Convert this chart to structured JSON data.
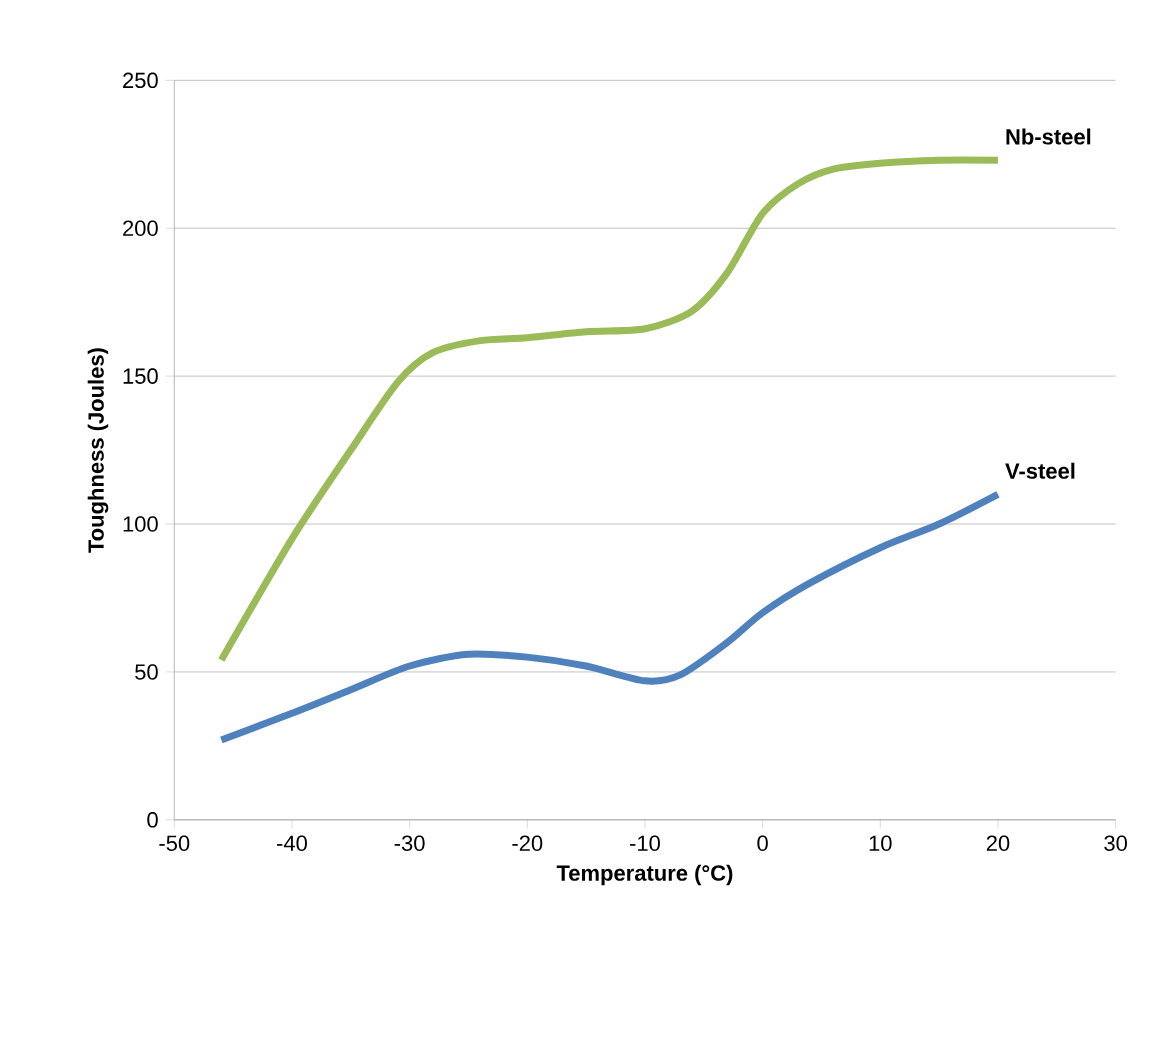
{
  "chart_data": {
    "type": "line",
    "xlabel": "Temperature (°C)",
    "ylabel": "Toughness  (Joules)",
    "xlim": [
      -50,
      30
    ],
    "xticks": [
      -50,
      -40,
      -30,
      -20,
      -10,
      0,
      10,
      20,
      30
    ],
    "ylim": [
      0,
      250
    ],
    "yticks": [
      0,
      50,
      100,
      150,
      200,
      250
    ],
    "grid": "y",
    "marker": "none",
    "line_style": "solid",
    "series": [
      {
        "name": "Nb-steel",
        "color": "#9bbb59",
        "x": [
          -46,
          -40,
          -35,
          -31,
          -28,
          -24,
          -20,
          -15,
          -10,
          -6,
          -3,
          0,
          3,
          6,
          10,
          15,
          20
        ],
        "values": [
          54,
          95,
          125,
          148,
          158,
          162,
          163,
          165,
          166,
          172,
          185,
          205,
          215,
          220,
          222,
          223,
          223
        ]
      },
      {
        "name": "V-steel",
        "color": "#4f81bd",
        "x": [
          -46,
          -40,
          -35,
          -30,
          -25,
          -20,
          -15,
          -10,
          -7,
          -3,
          0,
          4,
          10,
          15,
          20
        ],
        "values": [
          27,
          36,
          44,
          52,
          56,
          55,
          52,
          47,
          49,
          60,
          70,
          80,
          92,
          100,
          110
        ]
      }
    ]
  }
}
